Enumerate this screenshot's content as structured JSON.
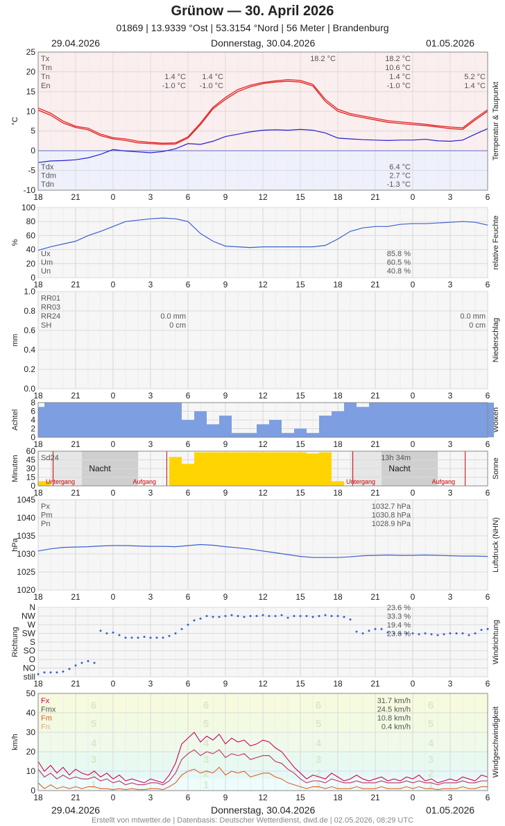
{
  "header": {
    "title": "Grünow  —  30. April 2026",
    "subtitle": "01869  |  13.9339 °Ost  |  53.3154 °Nord  |  56 Meter  |  Brandenburg",
    "date_left": "29.04.2026",
    "date_center": "Donnerstag, 30.04.2026",
    "date_right": "01.05.2026"
  },
  "footer": "Erstellt von mtwetter.de | Datenbasis: Deutscher Wetterdienst, dwd.de | 02.05.2026, 08:29 UTC",
  "x_hours": [
    "18",
    "21",
    "0",
    "3",
    "6",
    "9",
    "12",
    "15",
    "18",
    "21",
    "0",
    "3",
    "6"
  ],
  "colors": {
    "temp": "#e02020",
    "dew": "#2020d0",
    "line": "#3a5fd0",
    "cloud": "#7d9ee0",
    "sun": "#ffd400",
    "fx": "#d0005a",
    "fmx": "#c03060",
    "fm": "#e06020",
    "fn": "#f0a080"
  },
  "chart_data": [
    {
      "type": "line",
      "id": "temp",
      "ylabel": "°C",
      "side_label": "Temperatur & Taupunkt",
      "ylim": [
        -10,
        25
      ],
      "yticks": [
        25,
        20,
        15,
        10,
        5,
        0,
        -5,
        -10
      ],
      "x": [
        18,
        19,
        20,
        21,
        22,
        23,
        24,
        25,
        26,
        27,
        28,
        29,
        30,
        31,
        32,
        33,
        34,
        35,
        36,
        37,
        38,
        39,
        40,
        41,
        42,
        43,
        44,
        45,
        46,
        47,
        48,
        49,
        50,
        51,
        52,
        53,
        54
      ],
      "series": [
        {
          "name": "Tx",
          "values": [
            10.8,
            9.5,
            7.5,
            6.2,
            5.7,
            4.2,
            3.3,
            3.0,
            2.4,
            2.1,
            1.9,
            2.0,
            3.5,
            7.0,
            11.0,
            13.5,
            15.5,
            16.6,
            17.3,
            17.7,
            18.0,
            17.8,
            16.8,
            13.0,
            10.5,
            9.4,
            8.8,
            8.2,
            7.6,
            7.3,
            7.0,
            6.7,
            6.3,
            6.0,
            5.8,
            8.2,
            10.4
          ]
        },
        {
          "name": "Tm",
          "values": [
            10.3,
            9.0,
            7.0,
            5.9,
            5.3,
            3.8,
            3.0,
            2.6,
            2.0,
            1.8,
            1.6,
            1.7,
            3.2,
            6.6,
            10.6,
            13.0,
            15.0,
            16.2,
            17.0,
            17.4,
            17.6,
            17.4,
            16.4,
            12.5,
            10.0,
            9.0,
            8.4,
            7.8,
            7.2,
            6.9,
            6.6,
            6.4,
            6.0,
            5.6,
            5.4,
            7.8,
            10.0
          ]
        },
        {
          "name": "Tdx",
          "values": [
            -3.0,
            -2.6,
            -2.5,
            -2.3,
            -1.8,
            -0.9,
            0.3,
            -0.1,
            -0.3,
            -0.5,
            -0.2,
            0.5,
            1.8,
            1.6,
            2.4,
            3.6,
            4.2,
            4.8,
            5.2,
            5.3,
            5.2,
            5.4,
            5.2,
            4.5,
            3.2,
            3.0,
            2.8,
            2.7,
            2.6,
            2.7,
            2.7,
            2.9,
            2.5,
            2.4,
            2.7,
            4.2,
            5.6
          ]
        }
      ],
      "legend_top": [
        {
          "k": "Tx",
          "left": "",
          "mid": "18.2 °C",
          "right": "18.2 °C",
          "far": ""
        },
        {
          "k": "Tm",
          "left": "",
          "mid": "",
          "right": "10.6 °C",
          "far": ""
        },
        {
          "k": "Tn",
          "left": "1.4 °C",
          "mid2": "1.4 °C",
          "right": "1.4 °C",
          "far": "5.2 °C"
        },
        {
          "k": "En",
          "left": "-1.0 °C",
          "mid2": "-1.0 °C",
          "right": "-1.0 °C",
          "far": "1.4 °C"
        }
      ],
      "legend_bottom": [
        {
          "k": "Tdx",
          "right": "6.4 °C"
        },
        {
          "k": "Tdm",
          "right": "2.7 °C"
        },
        {
          "k": "Tdn",
          "right": "-1.3 °C"
        }
      ]
    },
    {
      "type": "line",
      "id": "hum",
      "ylabel": "%",
      "side_label": "relative Feuchte",
      "ylim": [
        0,
        100
      ],
      "yticks": [
        100,
        80,
        60,
        40,
        20,
        0
      ],
      "x": [
        18,
        19,
        20,
        21,
        22,
        23,
        24,
        25,
        26,
        27,
        28,
        29,
        30,
        31,
        32,
        33,
        34,
        35,
        36,
        37,
        38,
        39,
        40,
        41,
        42,
        43,
        44,
        45,
        46,
        47,
        48,
        49,
        50,
        51,
        52,
        53,
        54
      ],
      "series": [
        {
          "name": "U",
          "values": [
            39,
            44,
            48,
            52,
            60,
            66,
            73,
            80,
            82,
            84,
            85,
            84,
            80,
            63,
            52,
            45,
            44,
            43,
            44,
            44,
            44,
            44,
            44,
            46,
            55,
            66,
            71,
            73,
            73,
            76,
            77,
            77,
            78,
            79,
            80,
            79,
            75
          ]
        }
      ],
      "legend": [
        {
          "k": "Ux",
          "right": "85.8 %"
        },
        {
          "k": "Um",
          "right": "60.5 %"
        },
        {
          "k": "Un",
          "right": "40.8 %"
        }
      ]
    },
    {
      "type": "bar",
      "id": "rain",
      "ylabel": "mm",
      "side_label": "Niederschlag",
      "ylim": [
        0,
        1.0
      ],
      "yticks": [
        "1.0",
        "0.8",
        "0.6",
        "0.4",
        "0.2",
        "0.0"
      ],
      "values": [],
      "legend": [
        {
          "k": "RR01",
          "left": "",
          "right": ""
        },
        {
          "k": "RR03",
          "left": "",
          "right": ""
        },
        {
          "k": "RR24",
          "left": "0.0 mm",
          "right": "0.0 mm"
        },
        {
          "k": "SH",
          "left": "0 cm",
          "right": "0 cm"
        }
      ]
    },
    {
      "type": "bar",
      "id": "cloud",
      "ylabel": "Achtel",
      "side_label": "Wolken",
      "ylim": [
        0,
        8
      ],
      "yticks": [
        8,
        6,
        4,
        2,
        0
      ],
      "x": [
        18,
        19,
        20,
        21,
        22,
        23,
        24,
        25,
        26,
        27,
        28,
        29,
        30,
        31,
        32,
        33,
        34,
        35,
        36,
        37,
        38,
        39,
        40,
        41,
        42,
        43,
        44,
        45,
        46,
        47,
        48,
        49,
        50,
        51,
        52,
        53,
        54
      ],
      "values": [
        7,
        8,
        8,
        8,
        8,
        8,
        8,
        8,
        8,
        8,
        8,
        8,
        4,
        6,
        3,
        5,
        1,
        1,
        3,
        4,
        1,
        2,
        1,
        5,
        6,
        8,
        7,
        8,
        8,
        8,
        8,
        8,
        8,
        8,
        8,
        8,
        8
      ]
    },
    {
      "type": "bar",
      "id": "sun",
      "ylabel": "Minuten",
      "side_label": "Sonne",
      "ylim": [
        0,
        60
      ],
      "yticks": [
        60,
        45,
        30,
        15,
        0
      ],
      "x": [
        18,
        19,
        20,
        21,
        22,
        23,
        24,
        25,
        26,
        27,
        28,
        29,
        30,
        31,
        32,
        33,
        34,
        35,
        36,
        37,
        38,
        39,
        40,
        41,
        42,
        43,
        44,
        45,
        46,
        47,
        48,
        49,
        50,
        51,
        52,
        53,
        54
      ],
      "values": [
        0,
        0,
        0,
        0,
        0,
        0,
        0,
        0,
        0,
        0,
        0,
        50,
        38,
        58,
        58,
        58,
        58,
        58,
        58,
        58,
        58,
        58,
        56,
        58,
        8,
        0,
        0,
        0,
        0,
        0,
        0,
        0,
        0,
        0,
        0,
        0,
        0
      ],
      "texts": {
        "sd24": "Sd24",
        "night": "Nacht",
        "duration": "13h 34m",
        "set": "Untergang",
        "rise": "Aufgang"
      }
    },
    {
      "type": "line",
      "id": "pres",
      "ylabel": "hPa",
      "side_label": "Luftdruck (NHN)",
      "ylim": [
        1020,
        1045
      ],
      "yticks": [
        1045,
        1040,
        1035,
        1030,
        1025,
        1020
      ],
      "x": [
        18,
        19,
        20,
        21,
        22,
        23,
        24,
        25,
        26,
        27,
        28,
        29,
        30,
        31,
        32,
        33,
        34,
        35,
        36,
        37,
        38,
        39,
        40,
        41,
        42,
        43,
        44,
        45,
        46,
        47,
        48,
        49,
        50,
        51,
        52,
        53,
        54
      ],
      "series": [
        {
          "name": "P",
          "values": [
            1030.8,
            1031.4,
            1031.8,
            1031.9,
            1032.0,
            1032.2,
            1032.3,
            1032.3,
            1032.2,
            1032.1,
            1032.1,
            1032.0,
            1032.3,
            1032.6,
            1032.4,
            1032.0,
            1031.7,
            1031.3,
            1030.8,
            1030.3,
            1029.8,
            1029.3,
            1029.0,
            1029.0,
            1029.0,
            1029.2,
            1029.5,
            1029.6,
            1029.7,
            1029.6,
            1029.6,
            1029.7,
            1029.6,
            1029.5,
            1029.4,
            1029.4,
            1029.3
          ]
        }
      ],
      "legend": [
        {
          "k": "Px",
          "right": "1032.7 hPa"
        },
        {
          "k": "Pm",
          "right": "1030.8 hPa"
        },
        {
          "k": "Pn",
          "right": "1028.9 hPa"
        }
      ]
    },
    {
      "type": "scatter",
      "id": "dir",
      "ylabel": "Richtung",
      "side_label": "Windrichtung",
      "yticks": [
        "N",
        "NW",
        "W",
        "SW",
        "S",
        "SO",
        "O",
        "NO",
        "still"
      ],
      "x": [
        18,
        18.5,
        19,
        19.5,
        20,
        20.5,
        21,
        21.5,
        22,
        22.5,
        23,
        23.5,
        24,
        24.5,
        25,
        25.5,
        26,
        26.5,
        27,
        27.5,
        28,
        28.5,
        29,
        29.5,
        30,
        30.5,
        31,
        31.5,
        32,
        32.5,
        33,
        33.5,
        34,
        34.5,
        35,
        35.5,
        36,
        36.5,
        37,
        37.5,
        38,
        38.5,
        39,
        39.5,
        40,
        40.5,
        41,
        41.5,
        42,
        42.5,
        43,
        43.5,
        44,
        44.5,
        45,
        45.5,
        46,
        46.5,
        47,
        47.5,
        48,
        48.5,
        49,
        49.5,
        50,
        50.5,
        51,
        51.5,
        52,
        52.5,
        53,
        53.5,
        54
      ],
      "values": [
        7.7,
        7.5,
        7.5,
        7.5,
        7.4,
        7.1,
        6.7,
        6.4,
        6.2,
        6.4,
        2.7,
        3.0,
        2.9,
        3.2,
        3.5,
        3.5,
        3.5,
        3.4,
        3.5,
        3.5,
        3.5,
        3.3,
        3.0,
        2.5,
        2.0,
        1.5,
        1.3,
        1.0,
        1.1,
        1.1,
        1.0,
        0.9,
        1.0,
        1.1,
        1.0,
        1.0,
        0.9,
        1.0,
        1.0,
        0.9,
        1.2,
        1.0,
        1.0,
        1.0,
        1.1,
        1.0,
        0.9,
        1.0,
        1.0,
        1.1,
        1.4,
        2.8,
        3.0,
        2.7,
        2.5,
        2.5,
        2.9,
        3.0,
        3.0,
        3.0,
        3.0,
        3.1,
        3.0,
        3.1,
        3.2,
        3.1,
        3.0,
        3.0,
        3.0,
        3.2,
        3.0,
        2.6,
        2.5
      ],
      "legend": [
        {
          "k": "",
          "right": "23.6 %"
        },
        {
          "k": "",
          "right": "33.3 %"
        },
        {
          "k": "",
          "right": "19.4 %"
        },
        {
          "k": "",
          "right": "23.6 %"
        }
      ]
    },
    {
      "type": "line",
      "id": "wind",
      "ylabel": "km/h",
      "side_label": "Windgeschwindigkeit",
      "ylim": [
        0,
        50
      ],
      "yticks": [
        50,
        40,
        30,
        20,
        10,
        0
      ],
      "x": [
        18,
        18.5,
        19,
        19.5,
        20,
        20.5,
        21,
        21.5,
        22,
        22.5,
        23,
        23.5,
        24,
        24.5,
        25,
        25.5,
        26,
        26.5,
        27,
        27.5,
        28,
        28.5,
        29,
        29.5,
        30,
        30.5,
        31,
        31.5,
        32,
        32.5,
        33,
        33.5,
        34,
        34.5,
        35,
        35.5,
        36,
        36.5,
        37,
        37.5,
        38,
        38.5,
        39,
        39.5,
        40,
        40.5,
        41,
        41.5,
        42,
        42.5,
        43,
        43.5,
        44,
        44.5,
        45,
        45.5,
        46,
        46.5,
        47,
        47.5,
        48,
        48.5,
        49,
        49.5,
        50,
        50.5,
        51,
        51.5,
        52,
        52.5,
        53,
        53.5,
        54
      ],
      "series": [
        {
          "name": "Fx",
          "values": [
            15,
            10,
            13,
            9,
            12,
            8,
            11,
            9,
            8,
            10,
            7,
            9,
            6,
            8,
            5,
            6,
            5,
            4,
            6,
            5,
            4,
            8,
            14,
            24,
            27,
            30,
            25,
            28,
            26,
            29,
            24,
            27,
            25,
            26,
            23,
            24,
            26,
            25,
            22,
            20,
            16,
            12,
            9,
            6,
            8,
            7,
            6,
            9,
            7,
            5,
            6,
            8,
            6,
            5,
            6,
            7,
            5,
            6,
            5,
            7,
            6,
            8,
            5,
            6,
            4,
            5,
            6,
            5,
            7,
            6,
            5,
            8,
            7
          ]
        },
        {
          "name": "Fm",
          "values": [
            11,
            7,
            9,
            6,
            8,
            6,
            7,
            6,
            6,
            7,
            5,
            6,
            4,
            5,
            3,
            4,
            3,
            3,
            4,
            4,
            3,
            5,
            9,
            16,
            19,
            21,
            18,
            20,
            19,
            21,
            17,
            19,
            18,
            19,
            16,
            17,
            18,
            18,
            15,
            14,
            11,
            9,
            6,
            4,
            5,
            5,
            4,
            6,
            5,
            4,
            4,
            5,
            4,
            4,
            4,
            5,
            4,
            4,
            4,
            5,
            4,
            5,
            4,
            4,
            3,
            4,
            4,
            4,
            5,
            4,
            4,
            5,
            5
          ]
        },
        {
          "name": "Fn",
          "values": [
            4,
            1,
            3,
            1,
            2,
            1,
            2,
            1,
            2,
            2,
            1,
            1,
            0.5,
            1,
            0.5,
            1,
            0.5,
            0.5,
            1,
            1,
            0.5,
            2,
            4,
            8,
            10,
            11,
            9,
            10,
            9,
            12,
            8,
            10,
            9,
            10,
            7,
            8,
            9,
            9,
            7,
            6,
            4,
            3,
            2,
            1,
            2,
            2,
            1,
            2,
            1,
            1,
            1,
            2,
            1,
            1,
            1,
            2,
            1,
            1,
            1,
            2,
            1,
            2,
            1,
            1,
            0.5,
            1,
            1,
            1,
            2,
            1,
            1,
            2,
            2
          ]
        }
      ],
      "bft": [
        "6",
        "5",
        "4",
        "3",
        "2",
        "1"
      ],
      "legend": [
        {
          "k": "Fx",
          "right": "31.7 km/h"
        },
        {
          "k": "Fmx",
          "right": "24.5 km/h"
        },
        {
          "k": "Fm",
          "right": "10.8 km/h"
        },
        {
          "k": "Fn",
          "right": "0.4 km/h"
        }
      ]
    }
  ]
}
